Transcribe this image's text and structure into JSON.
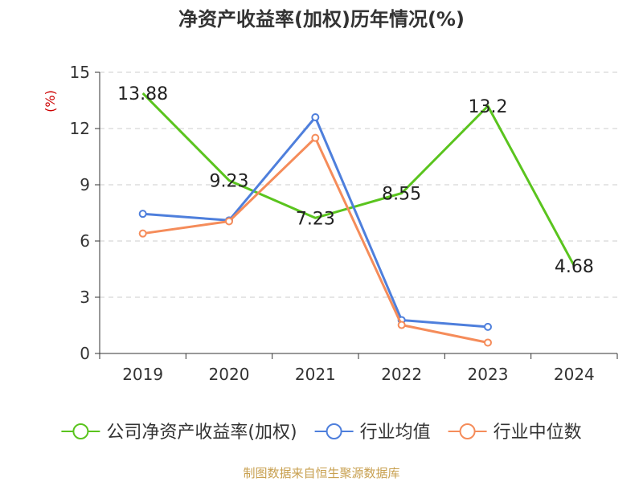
{
  "chart_data": {
    "type": "line",
    "title": "净资产收益率(加权)历年情况(%)",
    "ylabel": "(%)",
    "xlabel": "",
    "categories": [
      "2019",
      "2020",
      "2021",
      "2022",
      "2023",
      "2024"
    ],
    "ylim": [
      0,
      15
    ],
    "yticks": [
      0,
      3,
      6,
      9,
      12,
      15
    ],
    "grid": true,
    "legend_position": "bottom",
    "series": [
      {
        "name": "公司净资产收益率(加权)",
        "color": "#5ac41e",
        "values": [
          13.88,
          9.23,
          7.23,
          8.55,
          13.2,
          4.68
        ],
        "labels": [
          "13.88",
          "9.23",
          "7.23",
          "8.55",
          "13.2",
          "4.68"
        ],
        "show_markers": false
      },
      {
        "name": "行业均值",
        "color": "#4e7fdc",
        "values": [
          7.45,
          7.1,
          12.6,
          1.78,
          1.42,
          null
        ],
        "show_markers": true
      },
      {
        "name": "行业中位数",
        "color": "#f58c5a",
        "values": [
          6.4,
          7.05,
          11.5,
          1.52,
          0.58,
          null
        ],
        "show_markers": true
      }
    ],
    "source": "制图数据来自恒生聚源数据库"
  }
}
